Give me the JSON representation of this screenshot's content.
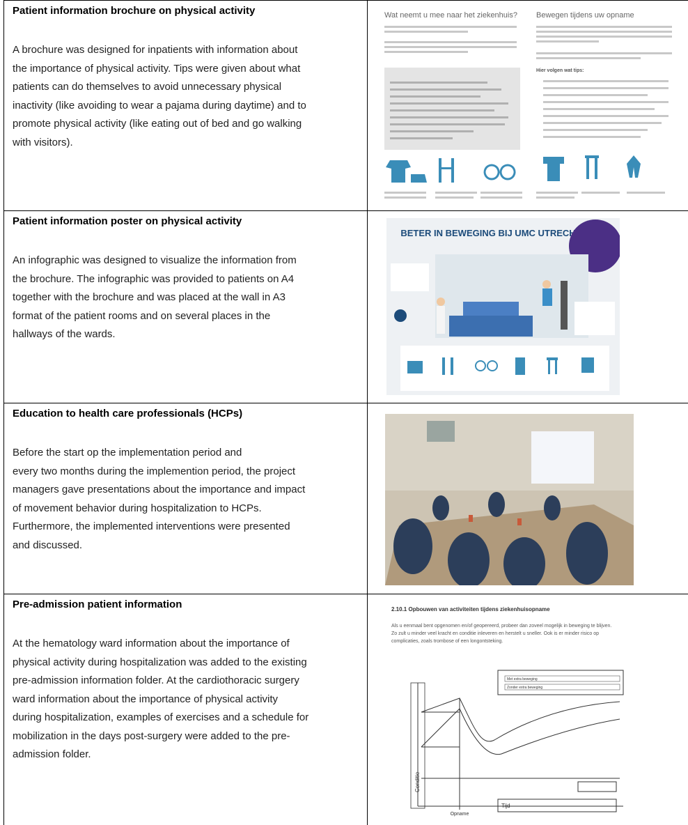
{
  "rows": [
    {
      "title": "Patient information brochure on physical activity",
      "lines": [
        "A brochure was designed for inpatients with information about",
        "the importance of physical activity. Tips were given about what",
        "patients can do themselves to avoid unnecessary physical",
        "inactivity (like avoiding to wear a pajama during daytime) and to",
        "promote physical activity (like eating out of bed and go walking",
        "with visitors)."
      ],
      "image": {
        "heading_left": "Wat neemt u mee naar het ziekenhuis?",
        "heading_right": "Bewegen tijdens uw opname",
        "tips": "Hier volgen wat tips:"
      }
    },
    {
      "title": "Patient information poster on physical activity",
      "lines": [
        "An infographic was designed to visualize the information from",
        "the brochure. The infographic was provided to patients on A4",
        "together with the brochure and was placed at the wall in A3",
        "format of the patient rooms and on several places in the",
        "hallways of the wards."
      ],
      "image": {
        "heading": "BETER IN BEWEGING BIJ UMC UTRECHT"
      }
    },
    {
      "title": "Education to health care professionals (HCPs)",
      "lines": [
        "Before the start op the implementation period and",
        "every two months during the implemention period, the project",
        "managers gave presentations about the importance and impact",
        "of movement behavior during hospitalization to HCPs.",
        "Furthermore, the implemented interventions were presented",
        "and discussed."
      ]
    },
    {
      "title": "Pre-admission patient information",
      "lines": [
        "At the hematology ward information about the importance of",
        "physical activity during hospitalization was added to the existing",
        "pre-admission information folder.  At the cardiothoracic surgery",
        "ward information about the importance of physical activity",
        "during hospitalization, examples of exercises and a schedule for",
        "mobilization in the days post-surgery were added to the pre-",
        "admission folder."
      ],
      "image": {
        "heading": "2.10.1 Opbouwen van activiteiten tijdens ziekenhuisopname",
        "lines": [
          "Als u eenmaal bent opgenomen en/of geopereerd, probeer dan zoveel mogelijk in beweging te blijven.",
          "Zo zult u minder veel kracht en conditie inleveren en herstelt u sneller. Ook is er minder risico op",
          "complicaties, zoals trombose of een longontsteking."
        ],
        "legend": [
          "Met extra beweging",
          "Zonder extra beweging"
        ],
        "y_label": "Conditie",
        "x_marker": "Opname",
        "x_label": "Tijd"
      }
    }
  ]
}
